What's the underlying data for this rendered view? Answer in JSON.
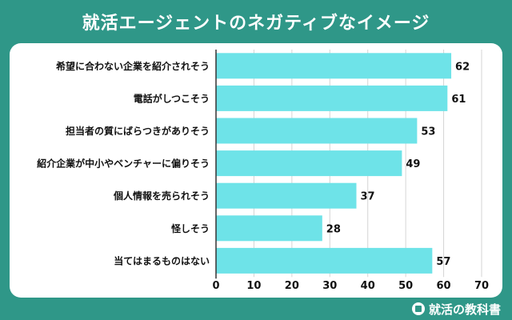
{
  "header": {
    "title": "就活エージェントのネガティブなイメージ"
  },
  "brand": {
    "name": "就活の教科書",
    "icon": "book-pencil-icon"
  },
  "colors": {
    "bar": "#6ee3e8",
    "background": "#2f9788",
    "panel": "#ffffff"
  },
  "chart_data": {
    "type": "bar",
    "orientation": "horizontal",
    "title": "",
    "xlabel": "",
    "ylabel": "",
    "xlim": [
      0,
      70
    ],
    "ticks": [
      0,
      10,
      20,
      30,
      40,
      50,
      60,
      70
    ],
    "grid": true,
    "categories": [
      "希望に合わない企業を紹介されそう",
      "電話がしつこそう",
      "担当者の質にばらつきがありそう",
      "紹介企業が中小やベンチャーに偏りそう",
      "個人情報を売られそう",
      "怪しそう",
      "当てはまるものはない"
    ],
    "values": [
      62,
      61,
      53,
      49,
      37,
      28,
      57
    ]
  }
}
